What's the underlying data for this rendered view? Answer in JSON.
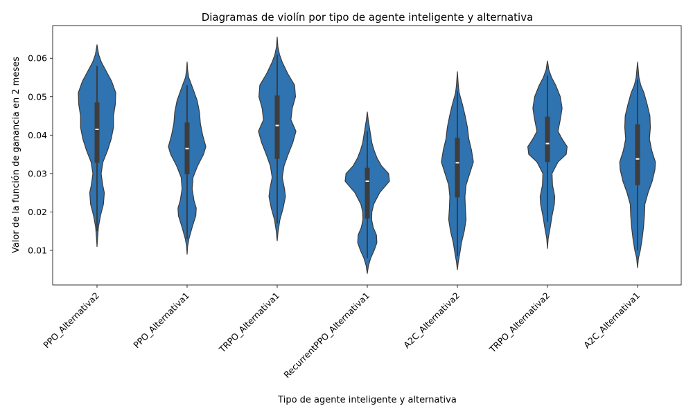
{
  "chart_data": {
    "type": "violin",
    "title": "Diagramas de violín por tipo de agente inteligente y alternativa",
    "xlabel": "Tipo de agente inteligente y alternativa",
    "ylabel": "Valor de la función de ganancia en 2 meses",
    "ylim": [
      0.001,
      0.0685
    ],
    "yticks": [
      "0.01",
      "0.02",
      "0.03",
      "0.04",
      "0.05",
      "0.06"
    ],
    "ytick_values": [
      0.01,
      0.02,
      0.03,
      0.04,
      0.05,
      0.06
    ],
    "grid": false,
    "legend": "none",
    "colors": {
      "violin_fill": "#2f73b0",
      "violin_edge": "#3a3a3a",
      "box": "#3d3d3d",
      "median": "#ffffff"
    },
    "categories": [
      "PPO_Alternativa2",
      "PPO_Alternativa1",
      "TRPO_Alternativa1",
      "RecurrentPPO_Alternativa1",
      "A2C_Alternativa2",
      "TRPO_Alternativa2",
      "A2C_Alternativa1"
    ],
    "series": [
      {
        "category": "PPO_Alternativa2",
        "min": 0.011,
        "max": 0.0635,
        "whisker_low": 0.015,
        "whisker_high": 0.058,
        "q1": 0.0328,
        "median": 0.0415,
        "q3": 0.0485,
        "density": [
          [
            0.011,
            0
          ],
          [
            0.013,
            0.02
          ],
          [
            0.016,
            0.06
          ],
          [
            0.019,
            0.15
          ],
          [
            0.022,
            0.28
          ],
          [
            0.025,
            0.32
          ],
          [
            0.027,
            0.25
          ],
          [
            0.03,
            0.18
          ],
          [
            0.033,
            0.26
          ],
          [
            0.036,
            0.46
          ],
          [
            0.039,
            0.62
          ],
          [
            0.042,
            0.72
          ],
          [
            0.045,
            0.72
          ],
          [
            0.048,
            0.8
          ],
          [
            0.051,
            0.82
          ],
          [
            0.054,
            0.64
          ],
          [
            0.057,
            0.37
          ],
          [
            0.059,
            0.19
          ],
          [
            0.061,
            0.07
          ],
          [
            0.0635,
            0
          ]
        ]
      },
      {
        "category": "PPO_Alternativa1",
        "min": 0.009,
        "max": 0.059,
        "whisker_low": 0.013,
        "whisker_high": 0.053,
        "q1": 0.0298,
        "median": 0.0365,
        "q3": 0.0433,
        "density": [
          [
            0.009,
            0
          ],
          [
            0.011,
            0.02
          ],
          [
            0.013,
            0.08
          ],
          [
            0.016,
            0.22
          ],
          [
            0.019,
            0.38
          ],
          [
            0.021,
            0.4
          ],
          [
            0.023,
            0.3
          ],
          [
            0.026,
            0.22
          ],
          [
            0.029,
            0.26
          ],
          [
            0.032,
            0.46
          ],
          [
            0.035,
            0.72
          ],
          [
            0.037,
            0.82
          ],
          [
            0.04,
            0.68
          ],
          [
            0.043,
            0.58
          ],
          [
            0.046,
            0.54
          ],
          [
            0.049,
            0.44
          ],
          [
            0.052,
            0.26
          ],
          [
            0.055,
            0.07
          ],
          [
            0.057,
            0.02
          ],
          [
            0.059,
            0
          ]
        ]
      },
      {
        "category": "TRPO_Alternativa1",
        "min": 0.0125,
        "max": 0.0655,
        "whisker_low": 0.017,
        "whisker_high": 0.061,
        "q1": 0.0338,
        "median": 0.0425,
        "q3": 0.0503,
        "density": [
          [
            0.0125,
            0
          ],
          [
            0.015,
            0.04
          ],
          [
            0.018,
            0.12
          ],
          [
            0.021,
            0.26
          ],
          [
            0.024,
            0.36
          ],
          [
            0.026,
            0.32
          ],
          [
            0.029,
            0.22
          ],
          [
            0.032,
            0.3
          ],
          [
            0.035,
            0.48
          ],
          [
            0.038,
            0.68
          ],
          [
            0.041,
            0.82
          ],
          [
            0.044,
            0.6
          ],
          [
            0.047,
            0.66
          ],
          [
            0.05,
            0.8
          ],
          [
            0.053,
            0.76
          ],
          [
            0.056,
            0.46
          ],
          [
            0.059,
            0.22
          ],
          [
            0.061,
            0.1
          ],
          [
            0.063,
            0.03
          ],
          [
            0.0655,
            0
          ]
        ]
      },
      {
        "category": "RecurrentPPO_Alternativa1",
        "min": 0.004,
        "max": 0.046,
        "whisker_low": 0.008,
        "whisker_high": 0.041,
        "q1": 0.0183,
        "median": 0.028,
        "q3": 0.0315,
        "density": [
          [
            0.004,
            0
          ],
          [
            0.006,
            0.05
          ],
          [
            0.008,
            0.15
          ],
          [
            0.01,
            0.3
          ],
          [
            0.012,
            0.42
          ],
          [
            0.014,
            0.4
          ],
          [
            0.016,
            0.26
          ],
          [
            0.018,
            0.19
          ],
          [
            0.02,
            0.2
          ],
          [
            0.022,
            0.28
          ],
          [
            0.025,
            0.54
          ],
          [
            0.028,
            0.97
          ],
          [
            0.03,
            0.93
          ],
          [
            0.032,
            0.62
          ],
          [
            0.034,
            0.43
          ],
          [
            0.036,
            0.3
          ],
          [
            0.038,
            0.2
          ],
          [
            0.041,
            0.12
          ],
          [
            0.044,
            0.04
          ],
          [
            0.046,
            0
          ]
        ]
      },
      {
        "category": "A2C_Alternativa2",
        "min": 0.005,
        "max": 0.0565,
        "whisker_low": 0.0085,
        "whisker_high": 0.0515,
        "q1": 0.0238,
        "median": 0.0328,
        "q3": 0.0393,
        "density": [
          [
            0.005,
            0
          ],
          [
            0.007,
            0.04
          ],
          [
            0.009,
            0.1
          ],
          [
            0.012,
            0.18
          ],
          [
            0.015,
            0.3
          ],
          [
            0.018,
            0.38
          ],
          [
            0.021,
            0.35
          ],
          [
            0.024,
            0.33
          ],
          [
            0.027,
            0.38
          ],
          [
            0.03,
            0.54
          ],
          [
            0.033,
            0.7
          ],
          [
            0.036,
            0.62
          ],
          [
            0.039,
            0.5
          ],
          [
            0.042,
            0.44
          ],
          [
            0.045,
            0.34
          ],
          [
            0.048,
            0.22
          ],
          [
            0.051,
            0.08
          ],
          [
            0.053,
            0.04
          ],
          [
            0.0565,
            0
          ]
        ]
      },
      {
        "category": "TRPO_Alternativa2",
        "min": 0.0105,
        "max": 0.0593,
        "whisker_low": 0.0175,
        "whisker_high": 0.0555,
        "q1": 0.033,
        "median": 0.0378,
        "q3": 0.0448,
        "density": [
          [
            0.0105,
            0
          ],
          [
            0.013,
            0.03
          ],
          [
            0.016,
            0.12
          ],
          [
            0.019,
            0.2
          ],
          [
            0.022,
            0.3
          ],
          [
            0.024,
            0.32
          ],
          [
            0.027,
            0.22
          ],
          [
            0.03,
            0.2
          ],
          [
            0.033,
            0.46
          ],
          [
            0.035,
            0.82
          ],
          [
            0.037,
            0.86
          ],
          [
            0.039,
            0.64
          ],
          [
            0.041,
            0.46
          ],
          [
            0.044,
            0.56
          ],
          [
            0.047,
            0.64
          ],
          [
            0.05,
            0.56
          ],
          [
            0.053,
            0.36
          ],
          [
            0.055,
            0.18
          ],
          [
            0.057,
            0.06
          ],
          [
            0.0593,
            0
          ]
        ]
      },
      {
        "category": "A2C_Alternativa1",
        "min": 0.0055,
        "max": 0.059,
        "whisker_low": 0.01,
        "whisker_high": 0.0545,
        "q1": 0.027,
        "median": 0.0338,
        "q3": 0.0428,
        "density": [
          [
            0.0055,
            0
          ],
          [
            0.008,
            0.04
          ],
          [
            0.01,
            0.12
          ],
          [
            0.013,
            0.2
          ],
          [
            0.016,
            0.26
          ],
          [
            0.019,
            0.3
          ],
          [
            0.022,
            0.32
          ],
          [
            0.025,
            0.46
          ],
          [
            0.028,
            0.64
          ],
          [
            0.031,
            0.76
          ],
          [
            0.033,
            0.78
          ],
          [
            0.036,
            0.62
          ],
          [
            0.039,
            0.52
          ],
          [
            0.042,
            0.56
          ],
          [
            0.045,
            0.54
          ],
          [
            0.048,
            0.42
          ],
          [
            0.051,
            0.28
          ],
          [
            0.053,
            0.14
          ],
          [
            0.055,
            0.06
          ],
          [
            0.059,
            0
          ]
        ]
      }
    ]
  }
}
